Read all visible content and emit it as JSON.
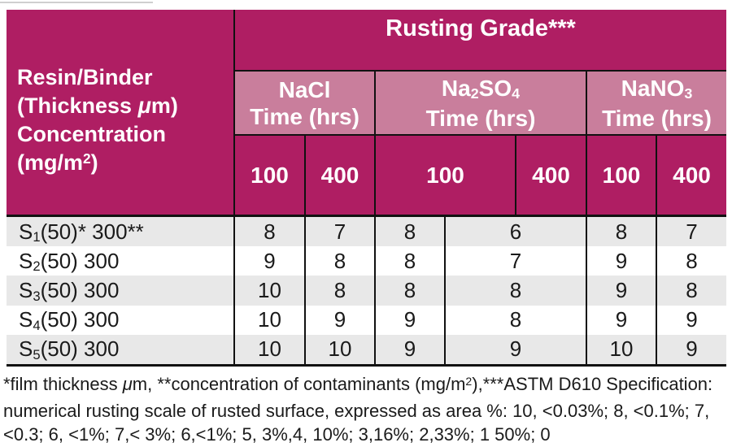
{
  "table": {
    "corner": {
      "line1": "Resin/Binder",
      "line2_pre": "(Thickness ",
      "mu": "μ",
      "line2_post": "m)",
      "line3": "Concentration",
      "line4_pre": "(mg/m",
      "sup2": "2",
      "line4_post": ")"
    },
    "grade_title": "Rusting Grade***",
    "groups": {
      "nacl": {
        "name": "NaCl",
        "time": "Time (hrs)"
      },
      "na2so4": {
        "pre": "Na",
        "sub1": "2",
        "mid": "SO",
        "sub2": "4",
        "time": "Time (hrs)"
      },
      "nano3": {
        "pre": "NaNO",
        "sub1": "3",
        "time": "Time (hrs)"
      }
    },
    "time_cols": [
      "100",
      "400",
      "100",
      "400",
      "100",
      "400"
    ],
    "rows": [
      {
        "label_base": "S",
        "label_sub": "1",
        "label_rest": "(50)* 300**",
        "values": [
          "8",
          "7",
          "8",
          "6",
          "8",
          "7"
        ]
      },
      {
        "label_base": "S",
        "label_sub": "2",
        "label_rest": "(50) 300",
        "values": [
          "9",
          "8",
          "8",
          "7",
          "9",
          "8"
        ]
      },
      {
        "label_base": "S",
        "label_sub": "3",
        "label_rest": "(50) 300",
        "values": [
          "10",
          "8",
          "8",
          "8",
          "9",
          "8"
        ]
      },
      {
        "label_base": "S",
        "label_sub": "4",
        "label_rest": "(50) 300",
        "values": [
          "10",
          "9",
          "9",
          "8",
          "9",
          "9"
        ]
      },
      {
        "label_base": "S",
        "label_sub": "5",
        "label_rest": "(50) 300",
        "values": [
          "10",
          "10",
          "9",
          "9",
          "10",
          "9"
        ]
      }
    ]
  },
  "footnotes": {
    "line1_pre": "*film thickness ",
    "line1_mu": "μ",
    "line1_mid": "m, **concentration of contaminants (mg/m",
    "line1_sup": "2",
    "line1_post": "),***ASTM D610 Specification:",
    "line2": "numerical rusting scale of rusted surface, expressed as area %: 10, <0.03%; 8, <0.1%; 7,",
    "line3": "<0.3; 6, <1%; 7,< 3%; 6,<1%; 5, 3%,4, 10%; 3,16%; 2,33%; 1 50%; 0"
  },
  "colors": {
    "header_dark": "#AF1E63",
    "header_mauve": "#C97E9C",
    "row_gray": "#E8E8E8",
    "border_black": "#111111",
    "text_white": "#FFFFFF"
  },
  "chart_data": {
    "type": "table",
    "title": "Rusting Grade***",
    "columns": [
      "Resin/Binder (Thickness μm) Concentration (mg/m2)",
      "NaCl 100 hrs",
      "NaCl 400 hrs",
      "Na2SO4 100 hrs",
      "Na2SO4 400 hrs",
      "NaNO3 100 hrs",
      "NaNO3 400 hrs"
    ],
    "rows": [
      [
        "S1(50)* 300**",
        8,
        7,
        8,
        6,
        8,
        7
      ],
      [
        "S2(50) 300",
        9,
        8,
        8,
        7,
        9,
        8
      ],
      [
        "S3(50) 300",
        10,
        8,
        8,
        8,
        9,
        8
      ],
      [
        "S4(50) 300",
        10,
        9,
        9,
        8,
        9,
        9
      ],
      [
        "S5(50) 300",
        10,
        10,
        9,
        9,
        10,
        9
      ]
    ]
  }
}
